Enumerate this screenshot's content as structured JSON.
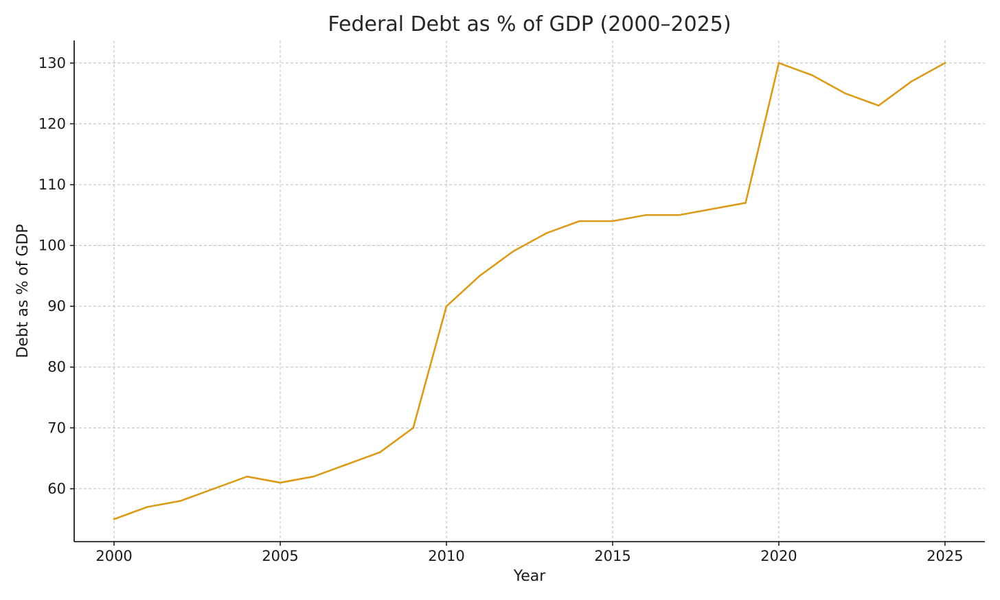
{
  "chart_data": {
    "type": "line",
    "title": "Federal Debt as % of GDP (2000–2025)",
    "xlabel": "Year",
    "ylabel": "Debt as % of GDP",
    "xlim": [
      1998.8,
      2026.2
    ],
    "ylim": [
      51.3,
      133.7
    ],
    "x_ticks": [
      2000,
      2005,
      2010,
      2015,
      2020,
      2025
    ],
    "y_ticks": [
      60,
      70,
      80,
      90,
      100,
      110,
      120,
      130
    ],
    "grid": true,
    "legend": "none",
    "colors": {
      "line": "#DB9B18",
      "grid": "#BDBDBD",
      "axis": "#000000"
    },
    "series": [
      {
        "x": [
          2000,
          2001,
          2002,
          2003,
          2004,
          2005,
          2006,
          2007,
          2008,
          2009,
          2010,
          2011,
          2012,
          2013,
          2014,
          2015,
          2016,
          2017,
          2018,
          2019,
          2020,
          2021,
          2022,
          2023,
          2024,
          2025
        ],
        "values": [
          55,
          57,
          58,
          60,
          62,
          61,
          62,
          64,
          66,
          70,
          90,
          95,
          99,
          102,
          104,
          104,
          105,
          105,
          106,
          107,
          130,
          128,
          125,
          123,
          127,
          130
        ]
      }
    ]
  }
}
